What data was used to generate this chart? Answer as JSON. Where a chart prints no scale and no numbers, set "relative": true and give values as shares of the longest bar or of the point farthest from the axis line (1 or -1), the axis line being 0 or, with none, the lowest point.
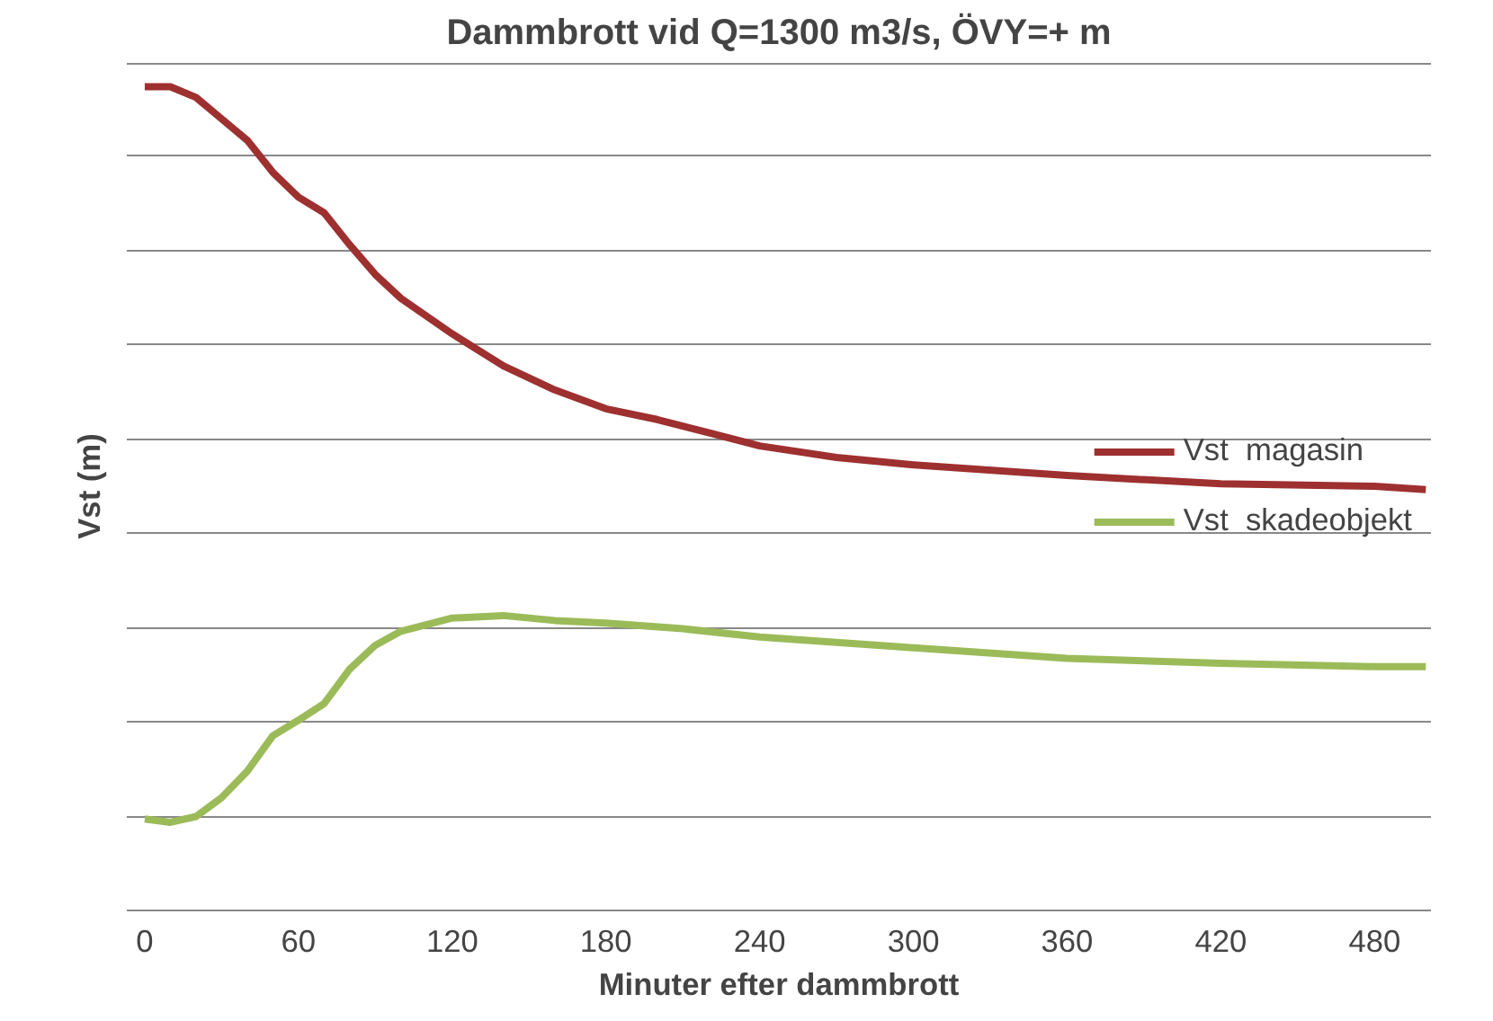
{
  "chart_data": {
    "type": "line",
    "title": "Dammbrott vid Q=1300 m3/s, ÖVY=+ m",
    "xlabel": "Minuter efter dammbrott",
    "ylabel": "Vst (m)",
    "relative": true,
    "xlim": [
      -7,
      502
    ],
    "xticks": [
      0,
      60,
      120,
      180,
      240,
      300,
      360,
      420,
      480
    ],
    "grid": "y",
    "legend": "right",
    "line_style": "solid",
    "marker": "none",
    "series": [
      {
        "name": "Vst  magasin",
        "color": "#9e3030",
        "x": [
          0,
          10,
          20,
          30,
          40,
          50,
          60,
          70,
          80,
          90,
          100,
          120,
          140,
          160,
          180,
          200,
          220,
          240,
          270,
          300,
          360,
          420,
          480,
          500
        ],
        "values": [
          1.0,
          1.0,
          0.987,
          0.961,
          0.935,
          0.896,
          0.866,
          0.847,
          0.808,
          0.772,
          0.743,
          0.7,
          0.661,
          0.632,
          0.609,
          0.596,
          0.58,
          0.564,
          0.55,
          0.541,
          0.528,
          0.518,
          0.515,
          0.511
        ]
      },
      {
        "name": "Vst  skadeobjekt",
        "color": "#9bbb59",
        "x": [
          0,
          10,
          20,
          30,
          40,
          50,
          60,
          70,
          80,
          90,
          100,
          120,
          140,
          160,
          180,
          210,
          240,
          300,
          360,
          420,
          480,
          500
        ],
        "values": [
          0.111,
          0.107,
          0.114,
          0.137,
          0.169,
          0.212,
          0.231,
          0.251,
          0.293,
          0.322,
          0.339,
          0.355,
          0.358,
          0.352,
          0.349,
          0.342,
          0.332,
          0.319,
          0.306,
          0.3,
          0.296,
          0.296
        ]
      }
    ]
  }
}
